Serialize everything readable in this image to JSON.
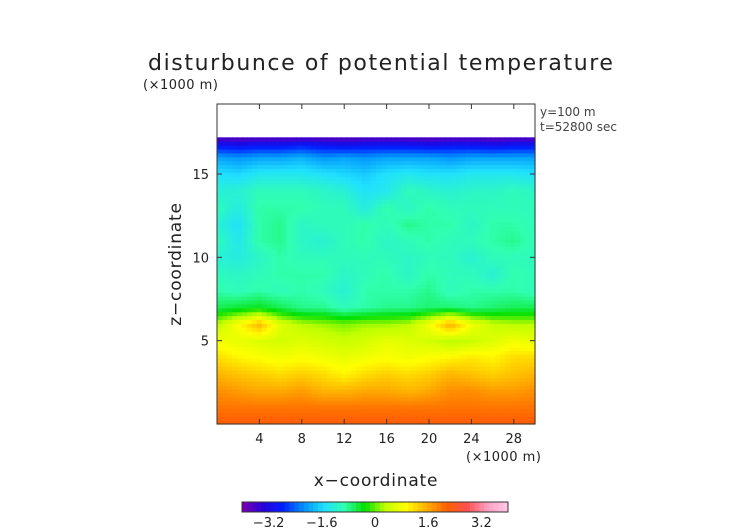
{
  "chart_data": {
    "type": "heatmap",
    "title": "disturbunce of potential temperature",
    "unit_label": "(×1000 m)",
    "xlabel": "x−coordinate",
    "ylabel": "z−coordinate",
    "x_unit_label": "(×1000 m)",
    "annotations": [
      "y=100 m",
      "t=52800 sec"
    ],
    "xlim": [
      0,
      30
    ],
    "ylim": [
      0,
      19.2
    ],
    "x_ticks": [
      {
        "value": 4,
        "label": "4"
      },
      {
        "value": 8,
        "label": "8"
      },
      {
        "value": 12,
        "label": "12"
      },
      {
        "value": 16,
        "label": "16"
      },
      {
        "value": 20,
        "label": "20"
      },
      {
        "value": 24,
        "label": "24"
      },
      {
        "value": 28,
        "label": "28"
      }
    ],
    "y_ticks": [
      {
        "value": 5,
        "label": "5"
      },
      {
        "value": 10,
        "label": "10"
      },
      {
        "value": 15,
        "label": "15"
      }
    ],
    "colorbar": {
      "range": [
        -4,
        4
      ],
      "ticks": [
        {
          "value": -3.2,
          "label": "−3.2"
        },
        {
          "value": -1.6,
          "label": "−1.6"
        },
        {
          "value": 0,
          "label": "0"
        },
        {
          "value": 1.6,
          "label": "1.6"
        },
        {
          "value": 3.2,
          "label": "3.2"
        }
      ],
      "colors": [
        "#7a00b0",
        "#2a00d8",
        "#0020ff",
        "#0090ff",
        "#20e0ff",
        "#30ffb0",
        "#00e000",
        "#c0ff00",
        "#ffff00",
        "#ffb000",
        "#ff6000",
        "#ff5050",
        "#ffa0c0",
        "#ffc8e8"
      ]
    },
    "field": {
      "rows_z_km": [
        0,
        1,
        2,
        3,
        4,
        5,
        6,
        7,
        8,
        9,
        10,
        11,
        12,
        13,
        14,
        15,
        16,
        16.8,
        17.2
      ],
      "cols_x_km": [
        0,
        2,
        4,
        6,
        8,
        10,
        12,
        14,
        16,
        18,
        20,
        22,
        24,
        26,
        28,
        30
      ],
      "values": [
        [
          2.2,
          2.2,
          2.2,
          2.2,
          2.2,
          2.2,
          2.2,
          2.2,
          2.2,
          2.2,
          2.2,
          2.2,
          2.2,
          2.2,
          2.2,
          2.2
        ],
        [
          2.0,
          2.0,
          2.0,
          2.0,
          2.0,
          2.0,
          2.0,
          2.0,
          2.0,
          2.0,
          2.0,
          2.0,
          2.0,
          2.0,
          2.0,
          2.0
        ],
        [
          1.8,
          1.7,
          1.6,
          1.6,
          1.7,
          1.5,
          1.5,
          1.6,
          1.6,
          1.5,
          1.6,
          1.8,
          1.8,
          1.7,
          1.7,
          1.8
        ],
        [
          1.5,
          1.4,
          1.3,
          1.2,
          1.3,
          1.2,
          1.0,
          1.2,
          1.3,
          1.2,
          1.3,
          1.5,
          1.4,
          1.3,
          1.4,
          1.5
        ],
        [
          1.2,
          1.0,
          0.9,
          0.8,
          0.9,
          0.8,
          0.7,
          0.8,
          0.9,
          0.8,
          0.9,
          1.0,
          1.1,
          1.0,
          1.2,
          1.2
        ],
        [
          0.8,
          0.7,
          0.6,
          0.5,
          0.6,
          0.5,
          0.4,
          0.5,
          0.7,
          0.6,
          0.5,
          0.3,
          0.4,
          0.6,
          0.8,
          0.7
        ],
        [
          0.3,
          0.9,
          1.5,
          0.6,
          0.3,
          0.2,
          0.1,
          0.2,
          0.2,
          0.3,
          0.8,
          1.6,
          0.8,
          0.4,
          0.3,
          0.3
        ],
        [
          -0.6,
          -0.5,
          -0.4,
          -0.6,
          -0.8,
          -0.8,
          -1.0,
          -0.9,
          -0.8,
          -0.8,
          -0.7,
          -0.7,
          -0.8,
          -0.7,
          -0.6,
          -0.6
        ],
        [
          -0.9,
          -1.0,
          -0.9,
          -1.0,
          -0.9,
          -1.0,
          -1.2,
          -0.9,
          -0.9,
          -0.9,
          -0.8,
          -1.0,
          -0.9,
          -0.9,
          -0.9,
          -1.0
        ],
        [
          -1.0,
          -1.1,
          -1.0,
          -0.9,
          -0.9,
          -0.9,
          -1.1,
          -1.0,
          -0.9,
          -1.1,
          -0.9,
          -1.0,
          -1.0,
          -1.2,
          -0.9,
          -1.0
        ],
        [
          -1.2,
          -1.3,
          -1.1,
          -0.9,
          -1.0,
          -1.0,
          -1.0,
          -1.0,
          -1.0,
          -1.1,
          -1.0,
          -1.0,
          -1.2,
          -1.0,
          -1.0,
          -1.0
        ],
        [
          -1.0,
          -1.4,
          -0.9,
          -0.8,
          -1.1,
          -1.2,
          -1.0,
          -0.9,
          -1.1,
          -1.0,
          -0.9,
          -1.0,
          -1.0,
          -0.9,
          -0.8,
          -1.0
        ],
        [
          -1.2,
          -1.5,
          -0.9,
          -0.8,
          -1.1,
          -1.0,
          -1.0,
          -0.9,
          -1.0,
          -0.8,
          -0.9,
          -0.9,
          -1.1,
          -0.9,
          -0.9,
          -1.0
        ],
        [
          -1.0,
          -1.3,
          -0.9,
          -0.9,
          -0.9,
          -1.0,
          -1.0,
          -1.3,
          -0.9,
          -1.1,
          -0.9,
          -1.0,
          -1.0,
          -1.0,
          -1.0,
          -1.0
        ],
        [
          -1.2,
          -1.2,
          -1.0,
          -1.0,
          -1.0,
          -1.1,
          -1.2,
          -1.5,
          -1.4,
          -1.0,
          -1.1,
          -1.2,
          -1.1,
          -1.1,
          -1.0,
          -1.1
        ],
        [
          -1.5,
          -1.6,
          -1.4,
          -1.4,
          -1.4,
          -1.5,
          -1.6,
          -1.7,
          -1.5,
          -1.4,
          -1.5,
          -1.5,
          -1.4,
          -1.4,
          -1.4,
          -1.5
        ],
        [
          -2.0,
          -2.1,
          -2.0,
          -2.0,
          -1.9,
          -2.1,
          -2.0,
          -2.1,
          -2.0,
          -2.0,
          -2.0,
          -2.1,
          -2.0,
          -2.0,
          -2.0,
          -2.0
        ],
        [
          -3.0,
          -3.1,
          -3.0,
          -3.0,
          -2.9,
          -3.0,
          -3.1,
          -3.0,
          -3.0,
          -3.0,
          -3.1,
          -3.0,
          -3.0,
          -3.1,
          -3.0,
          -3.0
        ],
        [
          -3.8,
          -3.8,
          -3.8,
          -3.8,
          -3.8,
          -3.8,
          -3.8,
          -3.8,
          -3.8,
          -3.8,
          -3.8,
          -3.8,
          -3.8,
          -3.8,
          -3.8,
          -3.8
        ]
      ],
      "top_boundary_z_km": 17.2,
      "above_top": "blank"
    }
  }
}
